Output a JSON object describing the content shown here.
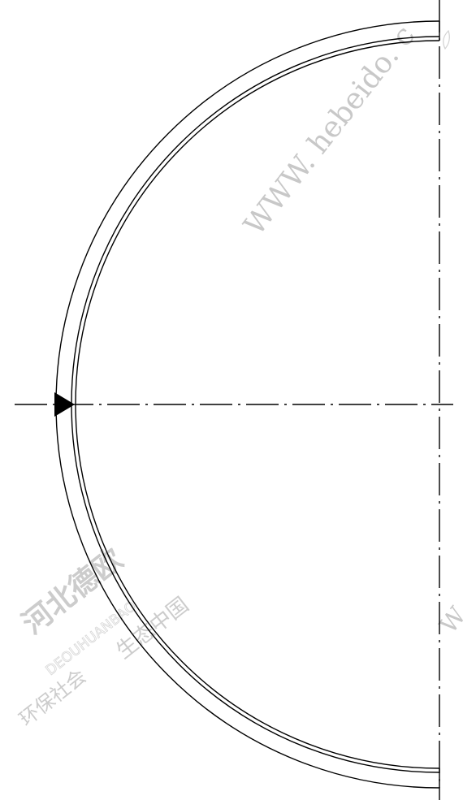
{
  "drawing": {
    "type": "half-ring section drawing (technical CAD)",
    "line_color": "#000000",
    "background": "#ffffff"
  },
  "watermarks": {
    "url_text": "WWW. hebeido. c",
    "url_text_lower": "W",
    "company_cn": "河北德欧",
    "company_pinyin": "DEOUHUANBAO",
    "slogan_left": "环保社会",
    "slogan_right": "生态中国",
    "color": "#c8c8c8"
  }
}
